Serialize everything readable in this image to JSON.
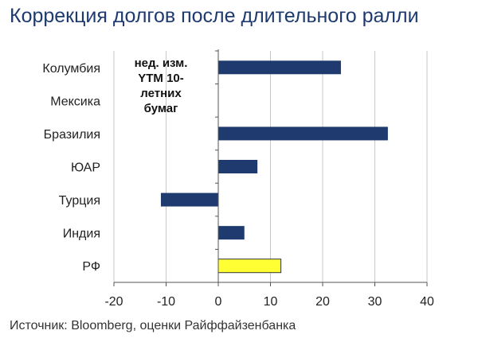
{
  "title": "Коррекция долгов после длительного ралли",
  "source": "Источник: Bloomberg, оценки Райффайзенбанка",
  "colors": {
    "title": "#1F3A6E",
    "bar": "#1F3A6E",
    "highlight": "#FFFF33",
    "grid": "#C8C8C8",
    "axis": "#555555",
    "text": "#222222"
  },
  "chart_data": {
    "type": "bar",
    "orientation": "horizontal",
    "title": "Коррекция долгов после длительного ралли",
    "annotation": [
      "нед. изм.",
      "YTM 10-",
      "летних",
      "бумаг"
    ],
    "categories": [
      "Колумбия",
      "Мексика",
      "Бразилия",
      "ЮАР",
      "Турция",
      "Индия",
      "РФ"
    ],
    "values": [
      23.5,
      0,
      32.5,
      7.5,
      -11,
      5,
      12
    ],
    "highlight": [
      false,
      false,
      false,
      false,
      false,
      false,
      true
    ],
    "xlim": [
      -20,
      40
    ],
    "xticks": [
      -20,
      -10,
      0,
      10,
      20,
      30,
      40
    ],
    "grid": true,
    "source": "Источник: Bloomberg, оценки Райффайзенбанка"
  }
}
